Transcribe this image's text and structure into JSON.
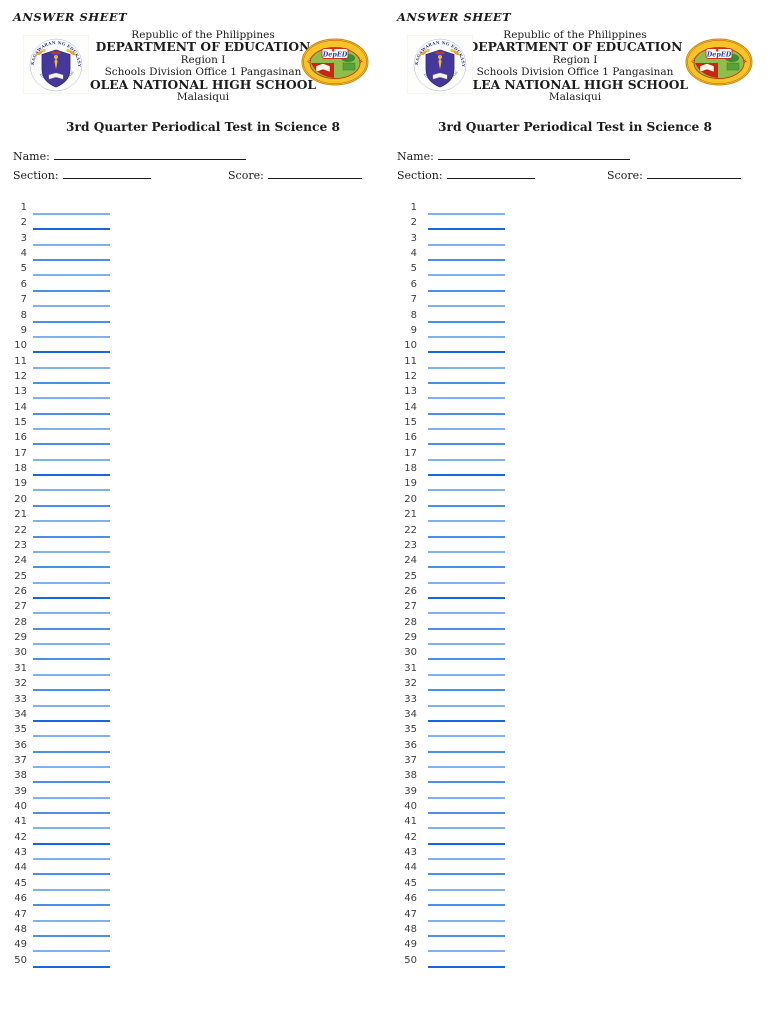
{
  "document": {
    "answer_sheet_label": "ANSWER SHEET",
    "header": {
      "republic": "Republic of the Philippines",
      "department": "DEPARTMENT OF EDUCATION",
      "region": "Region I",
      "division": "Schools Division Office 1 Pangasinan",
      "school": "OLEA NATIONAL HIGH SCHOOL",
      "municipality": "Malasiqui"
    },
    "seals": {
      "deped_arc_top": "KAGAWARAN NG EDUKASYON",
      "deped_arc_bottom": "REPUBLIKA NG PILIPINAS",
      "school_arc_top": "OLEA NATIONAL HIGH SCHOOL",
      "school_center": "DepED"
    },
    "title": "3rd Quarter Periodical Test in Science 8",
    "fields": {
      "name": "Name:",
      "section": "Section:",
      "score": "Score:"
    },
    "answers": {
      "numbers": [
        1,
        2,
        3,
        4,
        5,
        6,
        7,
        8,
        9,
        10,
        11,
        12,
        13,
        14,
        15,
        16,
        17,
        18,
        19,
        20,
        21,
        22,
        23,
        24,
        25,
        26,
        27,
        28,
        29,
        30,
        31,
        32,
        33,
        34,
        35,
        36,
        37,
        38,
        39,
        40,
        41,
        42,
        43,
        44,
        45,
        46,
        47,
        48,
        49,
        50
      ]
    }
  },
  "colors": {
    "line_dark": "#1567E2",
    "line_mid": "#4A90E8",
    "line_light": "#7DB1F0",
    "shade_pattern": [
      "mid",
      "light",
      "dark",
      "light",
      "mid",
      "light",
      "mid",
      "light"
    ],
    "ink": "#1c1c1c"
  }
}
